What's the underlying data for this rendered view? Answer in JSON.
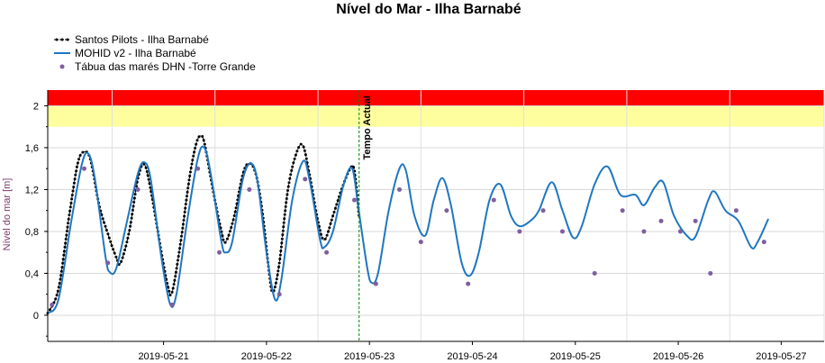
{
  "chart_data": {
    "type": "line",
    "title": "Nível do Mar - Ilha Barnabé",
    "ylabel": "Nível do mar [m]",
    "xlabel": "",
    "ylim": [
      -0.25,
      2.15
    ],
    "xlim": [
      "2019-05-20 09:00",
      "2019-05-27 22:00"
    ],
    "yticks": [
      0,
      0.4,
      0.8,
      1.2,
      1.6,
      2
    ],
    "ytick_labels": [
      "0",
      "0,4",
      "0,8",
      "1,2",
      "1,6",
      "2"
    ],
    "xticks": [
      "2019-05-21",
      "2019-05-22",
      "2019-05-23",
      "2019-05-24",
      "2019-05-25",
      "2019-05-26",
      "2019-05-27"
    ],
    "grid": true,
    "legend_position": "top-left",
    "bands": [
      {
        "from": 1.8,
        "to": 2.0,
        "color": "#fefe9e"
      },
      {
        "from": 2.0,
        "to": 2.15,
        "color": "#ff0000"
      }
    ],
    "vline": {
      "x": "2019-05-23 09:36",
      "label": "Tempo Actual",
      "color": "#008000"
    },
    "series": [
      {
        "name": "Santos Pilots - Ilha Barnabé",
        "style": "dotted-line",
        "color": "#000000",
        "points": [
          [
            "2019-05-20 09:00",
            0.02
          ],
          [
            "2019-05-20 11:30",
            0.25
          ],
          [
            "2019-05-20 14:00",
            0.95
          ],
          [
            "2019-05-20 16:00",
            1.45
          ],
          [
            "2019-05-20 17:30",
            1.56
          ],
          [
            "2019-05-20 19:00",
            1.48
          ],
          [
            "2019-05-20 21:00",
            1.05
          ],
          [
            "2019-05-20 23:00",
            0.78
          ],
          [
            "2019-05-21 01:00",
            0.55
          ],
          [
            "2019-05-21 02:00",
            0.5
          ],
          [
            "2019-05-21 04:00",
            0.8
          ],
          [
            "2019-05-21 06:00",
            1.3
          ],
          [
            "2019-05-21 07:30",
            1.44
          ],
          [
            "2019-05-21 09:00",
            1.2
          ],
          [
            "2019-05-21 11:30",
            0.6
          ],
          [
            "2019-05-21 13:00",
            0.28
          ],
          [
            "2019-05-21 14:00",
            0.22
          ],
          [
            "2019-05-21 16:00",
            0.7
          ],
          [
            "2019-05-21 18:00",
            1.3
          ],
          [
            "2019-05-21 19:30",
            1.62
          ],
          [
            "2019-05-21 20:30",
            1.71
          ],
          [
            "2019-05-21 21:30",
            1.65
          ],
          [
            "2019-05-21 23:30",
            1.2
          ],
          [
            "2019-05-22 01:30",
            0.8
          ],
          [
            "2019-05-22 02:30",
            0.7
          ],
          [
            "2019-05-22 04:30",
            0.95
          ],
          [
            "2019-05-22 06:30",
            1.35
          ],
          [
            "2019-05-22 08:00",
            1.45
          ],
          [
            "2019-05-22 09:30",
            1.35
          ],
          [
            "2019-05-22 11:00",
            1.0
          ],
          [
            "2019-05-22 12:30",
            0.45
          ],
          [
            "2019-05-22 13:30",
            0.22
          ],
          [
            "2019-05-22 15:00",
            0.5
          ],
          [
            "2019-05-22 17:00",
            1.2
          ],
          [
            "2019-05-22 19:00",
            1.55
          ],
          [
            "2019-05-22 20:30",
            1.62
          ],
          [
            "2019-05-22 22:00",
            1.35
          ],
          [
            "2019-05-23 00:00",
            0.9
          ],
          [
            "2019-05-23 01:30",
            0.72
          ],
          [
            "2019-05-23 03:30",
            0.95
          ],
          [
            "2019-05-23 05:30",
            1.2
          ],
          [
            "2019-05-23 07:30",
            1.4
          ],
          [
            "2019-05-23 08:30",
            1.38
          ],
          [
            "2019-05-23 09:36",
            0.93
          ]
        ]
      },
      {
        "name": "MOHID v2 - Ilha Barnabé",
        "style": "line",
        "color": "#1f77c0",
        "points": [
          [
            "2019-05-20 09:00",
            0.02
          ],
          [
            "2019-05-20 11:30",
            0.15
          ],
          [
            "2019-05-20 14:30",
            0.9
          ],
          [
            "2019-05-20 17:00",
            1.45
          ],
          [
            "2019-05-20 18:30",
            1.54
          ],
          [
            "2019-05-20 20:00",
            1.3
          ],
          [
            "2019-05-20 22:30",
            0.55
          ],
          [
            "2019-05-20 23:30",
            0.41
          ],
          [
            "2019-05-21 01:00",
            0.45
          ],
          [
            "2019-05-21 03:30",
            0.9
          ],
          [
            "2019-05-21 06:00",
            1.35
          ],
          [
            "2019-05-21 07:30",
            1.46
          ],
          [
            "2019-05-21 09:00",
            1.3
          ],
          [
            "2019-05-21 11:30",
            0.55
          ],
          [
            "2019-05-21 13:30",
            0.11
          ],
          [
            "2019-05-21 15:00",
            0.2
          ],
          [
            "2019-05-21 17:30",
            0.9
          ],
          [
            "2019-05-21 20:00",
            1.5
          ],
          [
            "2019-05-21 21:30",
            1.6
          ],
          [
            "2019-05-21 23:00",
            1.35
          ],
          [
            "2019-05-22 01:30",
            0.7
          ],
          [
            "2019-05-22 02:30",
            0.6
          ],
          [
            "2019-05-22 04:00",
            0.7
          ],
          [
            "2019-05-22 06:30",
            1.3
          ],
          [
            "2019-05-22 08:30",
            1.45
          ],
          [
            "2019-05-22 10:00",
            1.25
          ],
          [
            "2019-05-22 12:00",
            0.6
          ],
          [
            "2019-05-22 14:00",
            0.15
          ],
          [
            "2019-05-22 15:30",
            0.35
          ],
          [
            "2019-05-22 18:00",
            1.1
          ],
          [
            "2019-05-22 20:30",
            1.47
          ],
          [
            "2019-05-22 22:00",
            1.3
          ],
          [
            "2019-05-23 00:30",
            0.72
          ],
          [
            "2019-05-23 01:30",
            0.65
          ],
          [
            "2019-05-23 03:30",
            0.8
          ],
          [
            "2019-05-23 06:00",
            1.25
          ],
          [
            "2019-05-23 08:00",
            1.4
          ],
          [
            "2019-05-23 09:30",
            1.0
          ],
          [
            "2019-05-23 11:30",
            0.45
          ],
          [
            "2019-05-23 12:30",
            0.31
          ],
          [
            "2019-05-23 14:00",
            0.4
          ],
          [
            "2019-05-23 16:30",
            1.0
          ],
          [
            "2019-05-23 19:00",
            1.4
          ],
          [
            "2019-05-23 20:30",
            1.38
          ],
          [
            "2019-05-23 22:30",
            0.95
          ],
          [
            "2019-05-24 01:00",
            0.76
          ],
          [
            "2019-05-24 03:00",
            1.1
          ],
          [
            "2019-05-24 05:00",
            1.31
          ],
          [
            "2019-05-24 07:00",
            1.05
          ],
          [
            "2019-05-24 09:30",
            0.5
          ],
          [
            "2019-05-24 11:30",
            0.38
          ],
          [
            "2019-05-24 13:30",
            0.6
          ],
          [
            "2019-05-24 16:00",
            1.1
          ],
          [
            "2019-05-24 18:30",
            1.25
          ],
          [
            "2019-05-24 21:00",
            0.95
          ],
          [
            "2019-05-24 23:00",
            0.85
          ],
          [
            "2019-05-25 01:30",
            0.9
          ],
          [
            "2019-05-25 03:30",
            1.0
          ],
          [
            "2019-05-25 06:30",
            1.27
          ],
          [
            "2019-05-25 09:00",
            1.0
          ],
          [
            "2019-05-25 11:30",
            0.74
          ],
          [
            "2019-05-25 13:30",
            0.85
          ],
          [
            "2019-05-25 16:30",
            1.25
          ],
          [
            "2019-05-25 19:30",
            1.42
          ],
          [
            "2019-05-25 22:30",
            1.15
          ],
          [
            "2019-05-26 02:00",
            1.15
          ],
          [
            "2019-05-26 04:00",
            1.05
          ],
          [
            "2019-05-26 06:30",
            1.22
          ],
          [
            "2019-05-26 08:30",
            1.27
          ],
          [
            "2019-05-26 11:00",
            0.95
          ],
          [
            "2019-05-26 14:00",
            0.76
          ],
          [
            "2019-05-26 16:00",
            0.75
          ],
          [
            "2019-05-26 19:00",
            1.1
          ],
          [
            "2019-05-26 20:30",
            1.18
          ],
          [
            "2019-05-26 23:00",
            1.0
          ],
          [
            "2019-05-27 02:00",
            0.9
          ],
          [
            "2019-05-27 05:00",
            0.65
          ],
          [
            "2019-05-27 06:30",
            0.7
          ],
          [
            "2019-05-27 09:00",
            0.92
          ]
        ]
      },
      {
        "name": "Tábua das marés DHN -Torre Grande",
        "style": "markers",
        "color": "#7f5f9f",
        "points": [
          [
            "2019-05-20 10:00",
            0.1
          ],
          [
            "2019-05-20 17:30",
            1.4
          ],
          [
            "2019-05-20 23:00",
            0.5
          ],
          [
            "2019-05-21 06:00",
            1.2
          ],
          [
            "2019-05-21 14:00",
            0.1
          ],
          [
            "2019-05-21 20:00",
            1.4
          ],
          [
            "2019-05-22 01:00",
            0.6
          ],
          [
            "2019-05-22 08:00",
            1.2
          ],
          [
            "2019-05-22 15:00",
            0.2
          ],
          [
            "2019-05-22 21:00",
            1.3
          ],
          [
            "2019-05-23 02:00",
            0.6
          ],
          [
            "2019-05-23 08:30",
            1.1
          ],
          [
            "2019-05-23 13:30",
            0.3
          ],
          [
            "2019-05-23 19:00",
            1.2
          ],
          [
            "2019-05-24 00:00",
            0.7
          ],
          [
            "2019-05-24 06:00",
            1.0
          ],
          [
            "2019-05-24 11:00",
            0.3
          ],
          [
            "2019-05-24 17:00",
            1.1
          ],
          [
            "2019-05-24 23:00",
            0.8
          ],
          [
            "2019-05-25 04:30",
            1.0
          ],
          [
            "2019-05-25 09:00",
            0.8
          ],
          [
            "2019-05-25 16:30",
            0.4
          ],
          [
            "2019-05-25 23:00",
            1.0
          ],
          [
            "2019-05-26 04:00",
            0.8
          ],
          [
            "2019-05-26 08:00",
            0.9
          ],
          [
            "2019-05-26 12:30",
            0.8
          ],
          [
            "2019-05-26 16:00",
            0.9
          ],
          [
            "2019-05-26 19:30",
            0.4
          ],
          [
            "2019-05-27 01:30",
            1.0
          ],
          [
            "2019-05-27 08:00",
            0.7
          ]
        ]
      }
    ]
  }
}
